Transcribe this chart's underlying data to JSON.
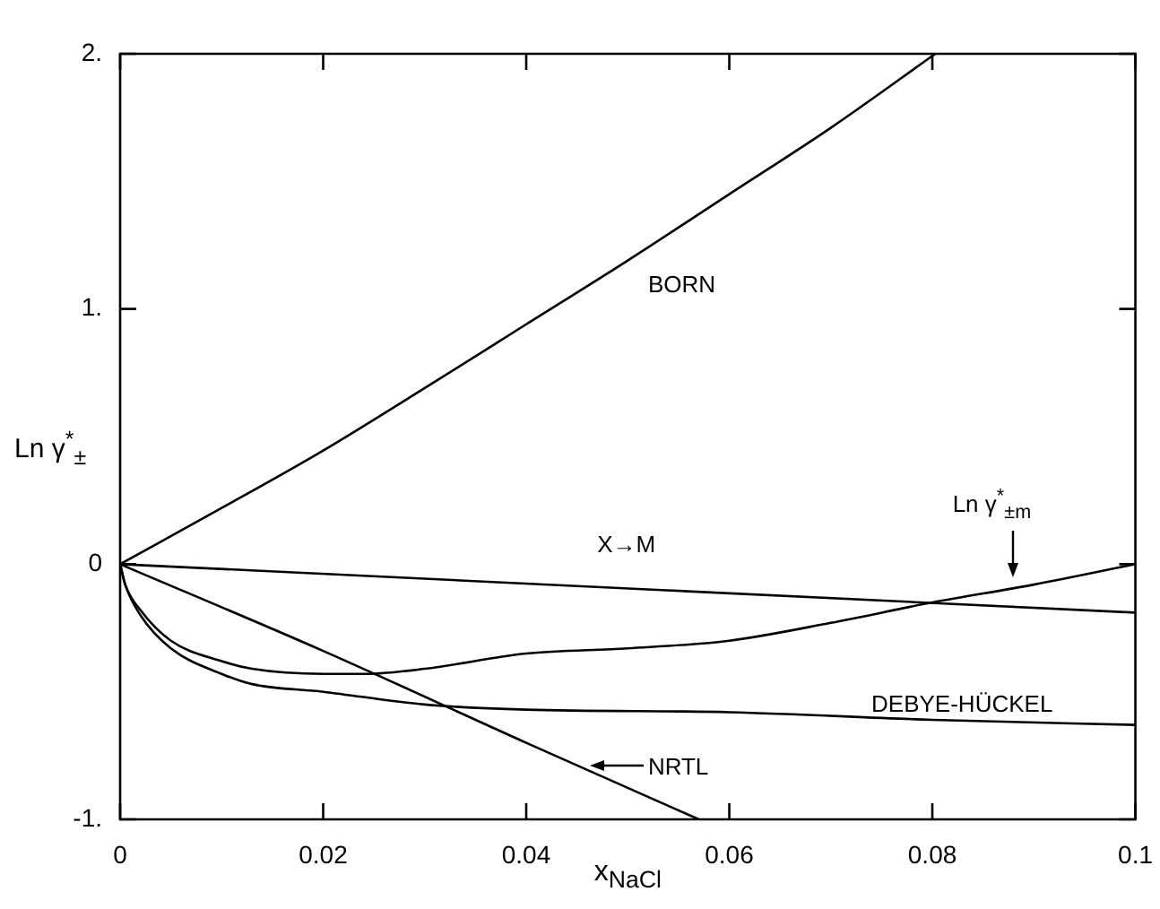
{
  "chart_data": {
    "type": "line",
    "xlabel": "x$_{NaCl}$",
    "ylabel": "Ln γ$^{*}$$_{±}$",
    "xlim": [
      0,
      0.1
    ],
    "ylim": [
      -1,
      2
    ],
    "xticks": [
      0,
      0.02,
      0.04,
      0.06,
      0.08,
      0.1
    ],
    "yticks": [
      {
        "value": -1,
        "label": "-1."
      },
      {
        "value": 0,
        "label": "0"
      },
      {
        "value": 1,
        "label": "1."
      },
      {
        "value": 2,
        "label": "2."
      }
    ],
    "marker": "none",
    "line_style": "solid",
    "legend": false,
    "series": [
      {
        "color": "#000000",
        "x": [
          0,
          0.01,
          0.02,
          0.03,
          0.04,
          0.05,
          0.06,
          0.07,
          0.0803
        ],
        "values": [
          0,
          0.22,
          0.445,
          0.69,
          0.94,
          1.19,
          1.45,
          1.71,
          2
        ]
      },
      {
        "color": "#000000",
        "x": [
          0,
          0.1
        ],
        "values": [
          0,
          -0.19
        ]
      },
      {
        "color": "#000000",
        "x": [
          0,
          0.0005,
          0.002,
          0.005,
          0.01,
          0.013,
          0.02,
          0.024,
          0.03,
          0.04,
          0.05,
          0.06,
          0.07,
          0.08,
          0.09,
          0.1
        ],
        "values": [
          0,
          -0.08,
          -0.18,
          -0.3,
          -0.38,
          -0.41,
          -0.43,
          -0.43,
          -0.41,
          -0.35,
          -0.33,
          -0.3,
          -0.23,
          -0.15,
          -0.08,
          0
        ]
      },
      {
        "color": "#000000",
        "x": [
          0,
          0.0005,
          0.002,
          0.005,
          0.01,
          0.013,
          0.02,
          0.03,
          0.04,
          0.06,
          0.08,
          0.1
        ],
        "values": [
          0,
          -0.08,
          -0.2,
          -0.33,
          -0.43,
          -0.47,
          -0.5,
          -0.55,
          -0.57,
          -0.58,
          -0.61,
          -0.63
        ]
      },
      {
        "color": "#000000",
        "x": [
          0,
          0.02,
          0.04,
          0.057
        ],
        "values": [
          0,
          -0.34,
          -0.7,
          -1
        ]
      }
    ],
    "annotations": [
      "BORN",
      "X→M",
      "Ln γ$^{*}$$_{±m}$",
      "DEBYE-HÜCKEL",
      "NRTL"
    ]
  }
}
